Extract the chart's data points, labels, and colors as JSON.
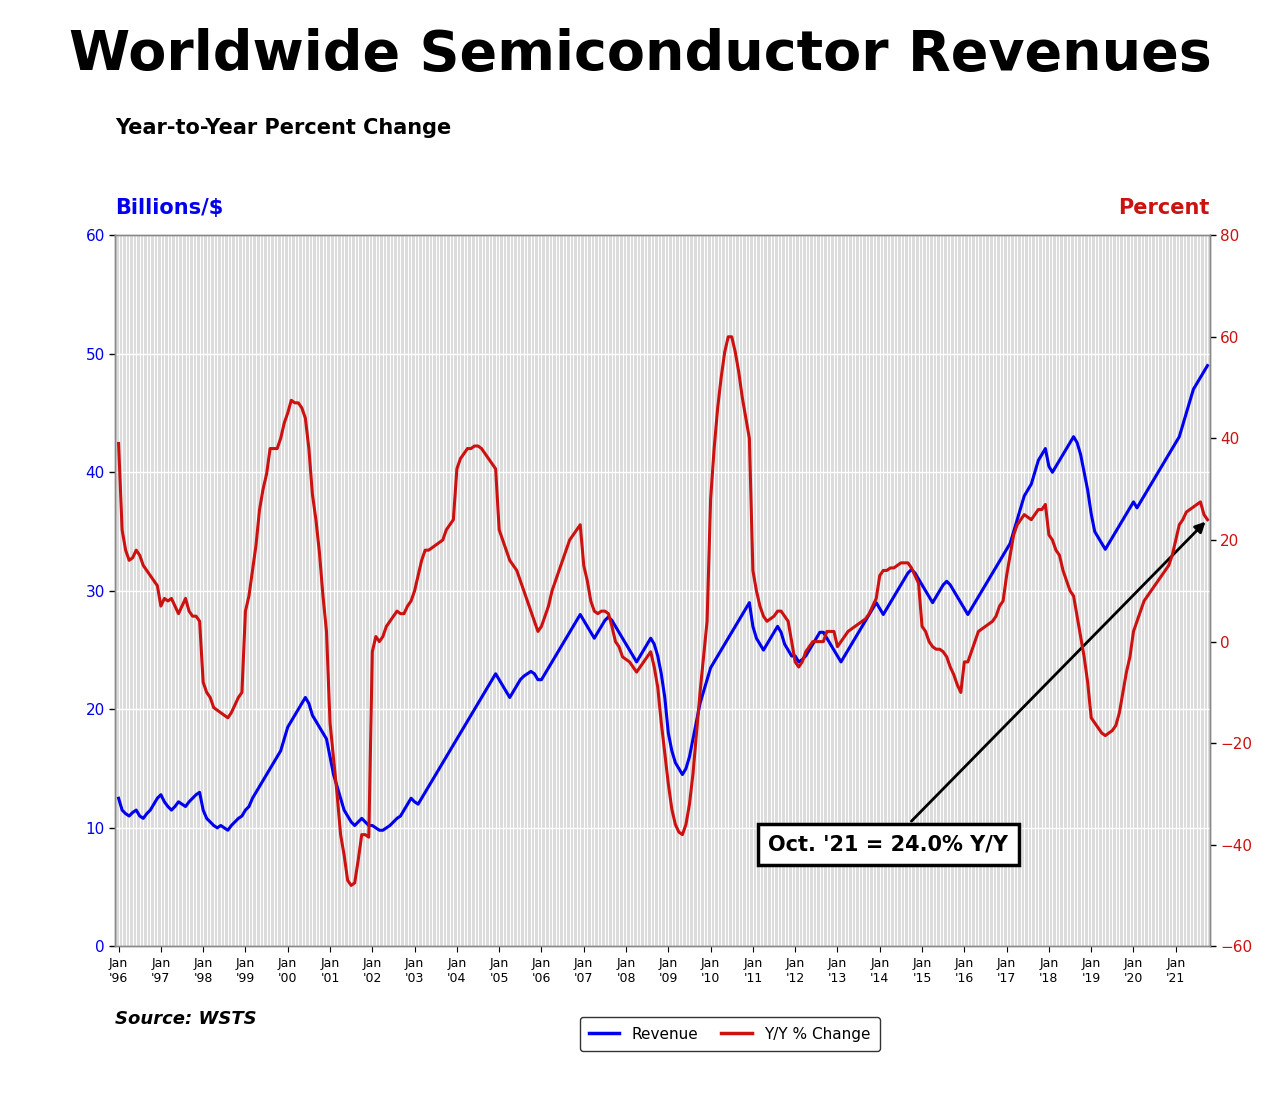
{
  "title": "Worldwide Semiconductor Revenues",
  "subtitle": "Year-to-Year Percent Change",
  "left_label": "Billions/$",
  "right_label": "Percent",
  "source_text": "Source: WSTS",
  "annotation_text": "Oct. '21 = 24.0% Y/Y",
  "left_ylim": [
    0,
    60
  ],
  "left_yticks": [
    0,
    10,
    20,
    30,
    40,
    50,
    60
  ],
  "right_ylim": [
    -60,
    80
  ],
  "right_yticks": [
    -60,
    -40,
    -20,
    0,
    20,
    40,
    60,
    80
  ],
  "blue_color": "#0000EE",
  "red_color": "#CC1111",
  "plot_bg": "#DCDCDC",
  "title_fontsize": 40,
  "subtitle_fontsize": 15,
  "label_fontsize": 15,
  "tick_fontsize": 11,
  "annotation_fontsize": 15,
  "revenue": [
    12.5,
    11.5,
    11.2,
    11.0,
    11.3,
    11.5,
    11.0,
    10.8,
    11.2,
    11.5,
    12.0,
    12.5,
    12.8,
    12.2,
    11.8,
    11.5,
    11.8,
    12.2,
    12.0,
    11.8,
    12.2,
    12.5,
    12.8,
    13.0,
    11.5,
    10.8,
    10.5,
    10.2,
    10.0,
    10.2,
    10.0,
    9.8,
    10.2,
    10.5,
    10.8,
    11.0,
    11.5,
    11.8,
    12.5,
    13.0,
    13.5,
    14.0,
    14.5,
    15.0,
    15.5,
    16.0,
    16.5,
    17.5,
    18.5,
    19.0,
    19.5,
    20.0,
    20.5,
    21.0,
    20.5,
    19.5,
    19.0,
    18.5,
    18.0,
    17.5,
    16.0,
    14.5,
    13.5,
    12.5,
    11.5,
    11.0,
    10.5,
    10.2,
    10.5,
    10.8,
    10.5,
    10.2,
    10.2,
    10.0,
    9.8,
    9.8,
    10.0,
    10.2,
    10.5,
    10.8,
    11.0,
    11.5,
    12.0,
    12.5,
    12.2,
    12.0,
    12.5,
    13.0,
    13.5,
    14.0,
    14.5,
    15.0,
    15.5,
    16.0,
    16.5,
    17.0,
    17.5,
    18.0,
    18.5,
    19.0,
    19.5,
    20.0,
    20.5,
    21.0,
    21.5,
    22.0,
    22.5,
    23.0,
    22.5,
    22.0,
    21.5,
    21.0,
    21.5,
    22.0,
    22.5,
    22.8,
    23.0,
    23.2,
    23.0,
    22.5,
    22.5,
    23.0,
    23.5,
    24.0,
    24.5,
    25.0,
    25.5,
    26.0,
    26.5,
    27.0,
    27.5,
    28.0,
    27.5,
    27.0,
    26.5,
    26.0,
    26.5,
    27.0,
    27.5,
    27.8,
    27.5,
    27.0,
    26.5,
    26.0,
    25.5,
    25.0,
    24.5,
    24.0,
    24.5,
    25.0,
    25.5,
    26.0,
    25.5,
    24.5,
    23.0,
    21.0,
    18.0,
    16.5,
    15.5,
    15.0,
    14.5,
    15.0,
    16.0,
    17.5,
    19.0,
    20.5,
    21.5,
    22.5,
    23.5,
    24.0,
    24.5,
    25.0,
    25.5,
    26.0,
    26.5,
    27.0,
    27.5,
    28.0,
    28.5,
    29.0,
    27.0,
    26.0,
    25.5,
    25.0,
    25.5,
    26.0,
    26.5,
    27.0,
    26.5,
    25.5,
    25.0,
    24.5,
    24.5,
    24.0,
    24.2,
    24.5,
    25.0,
    25.5,
    26.0,
    26.5,
    26.5,
    26.0,
    25.5,
    25.0,
    24.5,
    24.0,
    24.5,
    25.0,
    25.5,
    26.0,
    26.5,
    27.0,
    27.5,
    28.0,
    28.5,
    29.0,
    28.5,
    28.0,
    28.5,
    29.0,
    29.5,
    30.0,
    30.5,
    31.0,
    31.5,
    31.8,
    31.5,
    31.0,
    30.5,
    30.0,
    29.5,
    29.0,
    29.5,
    30.0,
    30.5,
    30.8,
    30.5,
    30.0,
    29.5,
    29.0,
    28.5,
    28.0,
    28.5,
    29.0,
    29.5,
    30.0,
    30.5,
    31.0,
    31.5,
    32.0,
    32.5,
    33.0,
    33.5,
    34.0,
    35.0,
    36.0,
    37.0,
    38.0,
    38.5,
    39.0,
    40.0,
    41.0,
    41.5,
    42.0,
    40.5,
    40.0,
    40.5,
    41.0,
    41.5,
    42.0,
    42.5,
    43.0,
    42.5,
    41.5,
    40.0,
    38.5,
    36.5,
    35.0,
    34.5,
    34.0,
    33.5,
    34.0,
    34.5,
    35.0,
    35.5,
    36.0,
    36.5,
    37.0,
    37.5,
    37.0,
    37.5,
    38.0,
    38.5,
    39.0,
    39.5,
    40.0,
    40.5,
    41.0,
    41.5,
    42.0,
    42.5,
    43.0,
    44.0,
    45.0,
    46.0,
    47.0,
    47.5,
    48.0,
    48.5,
    49.0
  ],
  "yoy": [
    39.0,
    22.0,
    18.0,
    16.0,
    16.5,
    18.0,
    17.0,
    15.0,
    14.0,
    13.0,
    12.0,
    11.0,
    7.0,
    8.5,
    8.0,
    8.5,
    7.0,
    5.5,
    7.0,
    8.5,
    6.0,
    5.0,
    5.0,
    4.0,
    -8.0,
    -10.0,
    -11.0,
    -13.0,
    -13.5,
    -14.0,
    -14.5,
    -15.0,
    -14.0,
    -12.5,
    -11.0,
    -10.0,
    6.0,
    9.0,
    14.0,
    19.0,
    26.0,
    30.0,
    33.0,
    38.0,
    38.0,
    38.0,
    40.0,
    43.0,
    45.0,
    47.5,
    47.0,
    47.0,
    46.0,
    44.0,
    38.0,
    29.0,
    24.0,
    17.5,
    9.0,
    2.0,
    -16.0,
    -23.0,
    -30.0,
    -38.0,
    -42.0,
    -47.0,
    -48.0,
    -47.5,
    -43.0,
    -38.0,
    -38.0,
    -38.5,
    -2.0,
    1.0,
    0.0,
    1.0,
    3.0,
    4.0,
    5.0,
    6.0,
    5.5,
    5.5,
    7.0,
    8.0,
    10.0,
    13.0,
    16.0,
    18.0,
    18.0,
    18.5,
    19.0,
    19.5,
    20.0,
    22.0,
    23.0,
    24.0,
    34.0,
    36.0,
    37.0,
    38.0,
    38.0,
    38.5,
    38.5,
    38.0,
    37.0,
    36.0,
    35.0,
    34.0,
    22.0,
    20.0,
    18.0,
    16.0,
    15.0,
    14.0,
    12.0,
    10.0,
    8.0,
    6.0,
    4.0,
    2.0,
    3.0,
    5.0,
    7.0,
    10.0,
    12.0,
    14.0,
    16.0,
    18.0,
    20.0,
    21.0,
    22.0,
    23.0,
    15.0,
    12.0,
    8.0,
    6.0,
    5.5,
    6.0,
    6.0,
    5.5,
    3.0,
    0.0,
    -1.0,
    -3.0,
    -3.5,
    -4.0,
    -5.0,
    -6.0,
    -5.0,
    -4.0,
    -3.0,
    -2.0,
    -5.0,
    -9.0,
    -16.0,
    -22.0,
    -28.0,
    -33.0,
    -36.0,
    -37.5,
    -38.0,
    -36.0,
    -32.0,
    -26.0,
    -18.0,
    -10.0,
    -3.0,
    4.0,
    28.0,
    38.0,
    46.0,
    52.0,
    57.0,
    60.0,
    60.0,
    57.0,
    53.0,
    48.0,
    44.0,
    40.0,
    14.0,
    10.0,
    7.0,
    5.0,
    4.0,
    4.5,
    5.0,
    6.0,
    6.0,
    5.0,
    4.0,
    0.0,
    -4.0,
    -5.0,
    -4.0,
    -2.0,
    -1.0,
    0.0,
    0.0,
    0.0,
    0.0,
    2.0,
    2.0,
    2.0,
    -1.0,
    0.0,
    1.0,
    2.0,
    2.5,
    3.0,
    3.5,
    4.0,
    4.5,
    5.5,
    7.0,
    8.5,
    13.0,
    14.0,
    14.0,
    14.5,
    14.5,
    15.0,
    15.5,
    15.5,
    15.5,
    14.5,
    13.0,
    11.5,
    3.0,
    2.0,
    0.0,
    -1.0,
    -1.5,
    -1.5,
    -2.0,
    -3.0,
    -5.0,
    -6.5,
    -8.5,
    -10.0,
    -4.0,
    -4.0,
    -2.0,
    0.0,
    2.0,
    2.5,
    3.0,
    3.5,
    4.0,
    5.0,
    7.0,
    8.0,
    13.0,
    17.0,
    21.0,
    23.0,
    24.0,
    25.0,
    24.5,
    24.0,
    25.0,
    26.0,
    26.0,
    27.0,
    21.0,
    20.0,
    18.0,
    17.0,
    14.0,
    12.0,
    10.0,
    9.0,
    5.0,
    1.0,
    -3.0,
    -8.0,
    -15.0,
    -16.0,
    -17.0,
    -18.0,
    -18.5,
    -18.0,
    -17.5,
    -16.5,
    -14.0,
    -10.0,
    -6.0,
    -3.0,
    2.0,
    4.0,
    6.0,
    8.0,
    9.0,
    10.0,
    11.0,
    12.0,
    13.0,
    14.0,
    15.0,
    17.0,
    20.0,
    23.0,
    24.0,
    25.5,
    26.0,
    26.5,
    27.0,
    27.5,
    25.0,
    24.0
  ]
}
